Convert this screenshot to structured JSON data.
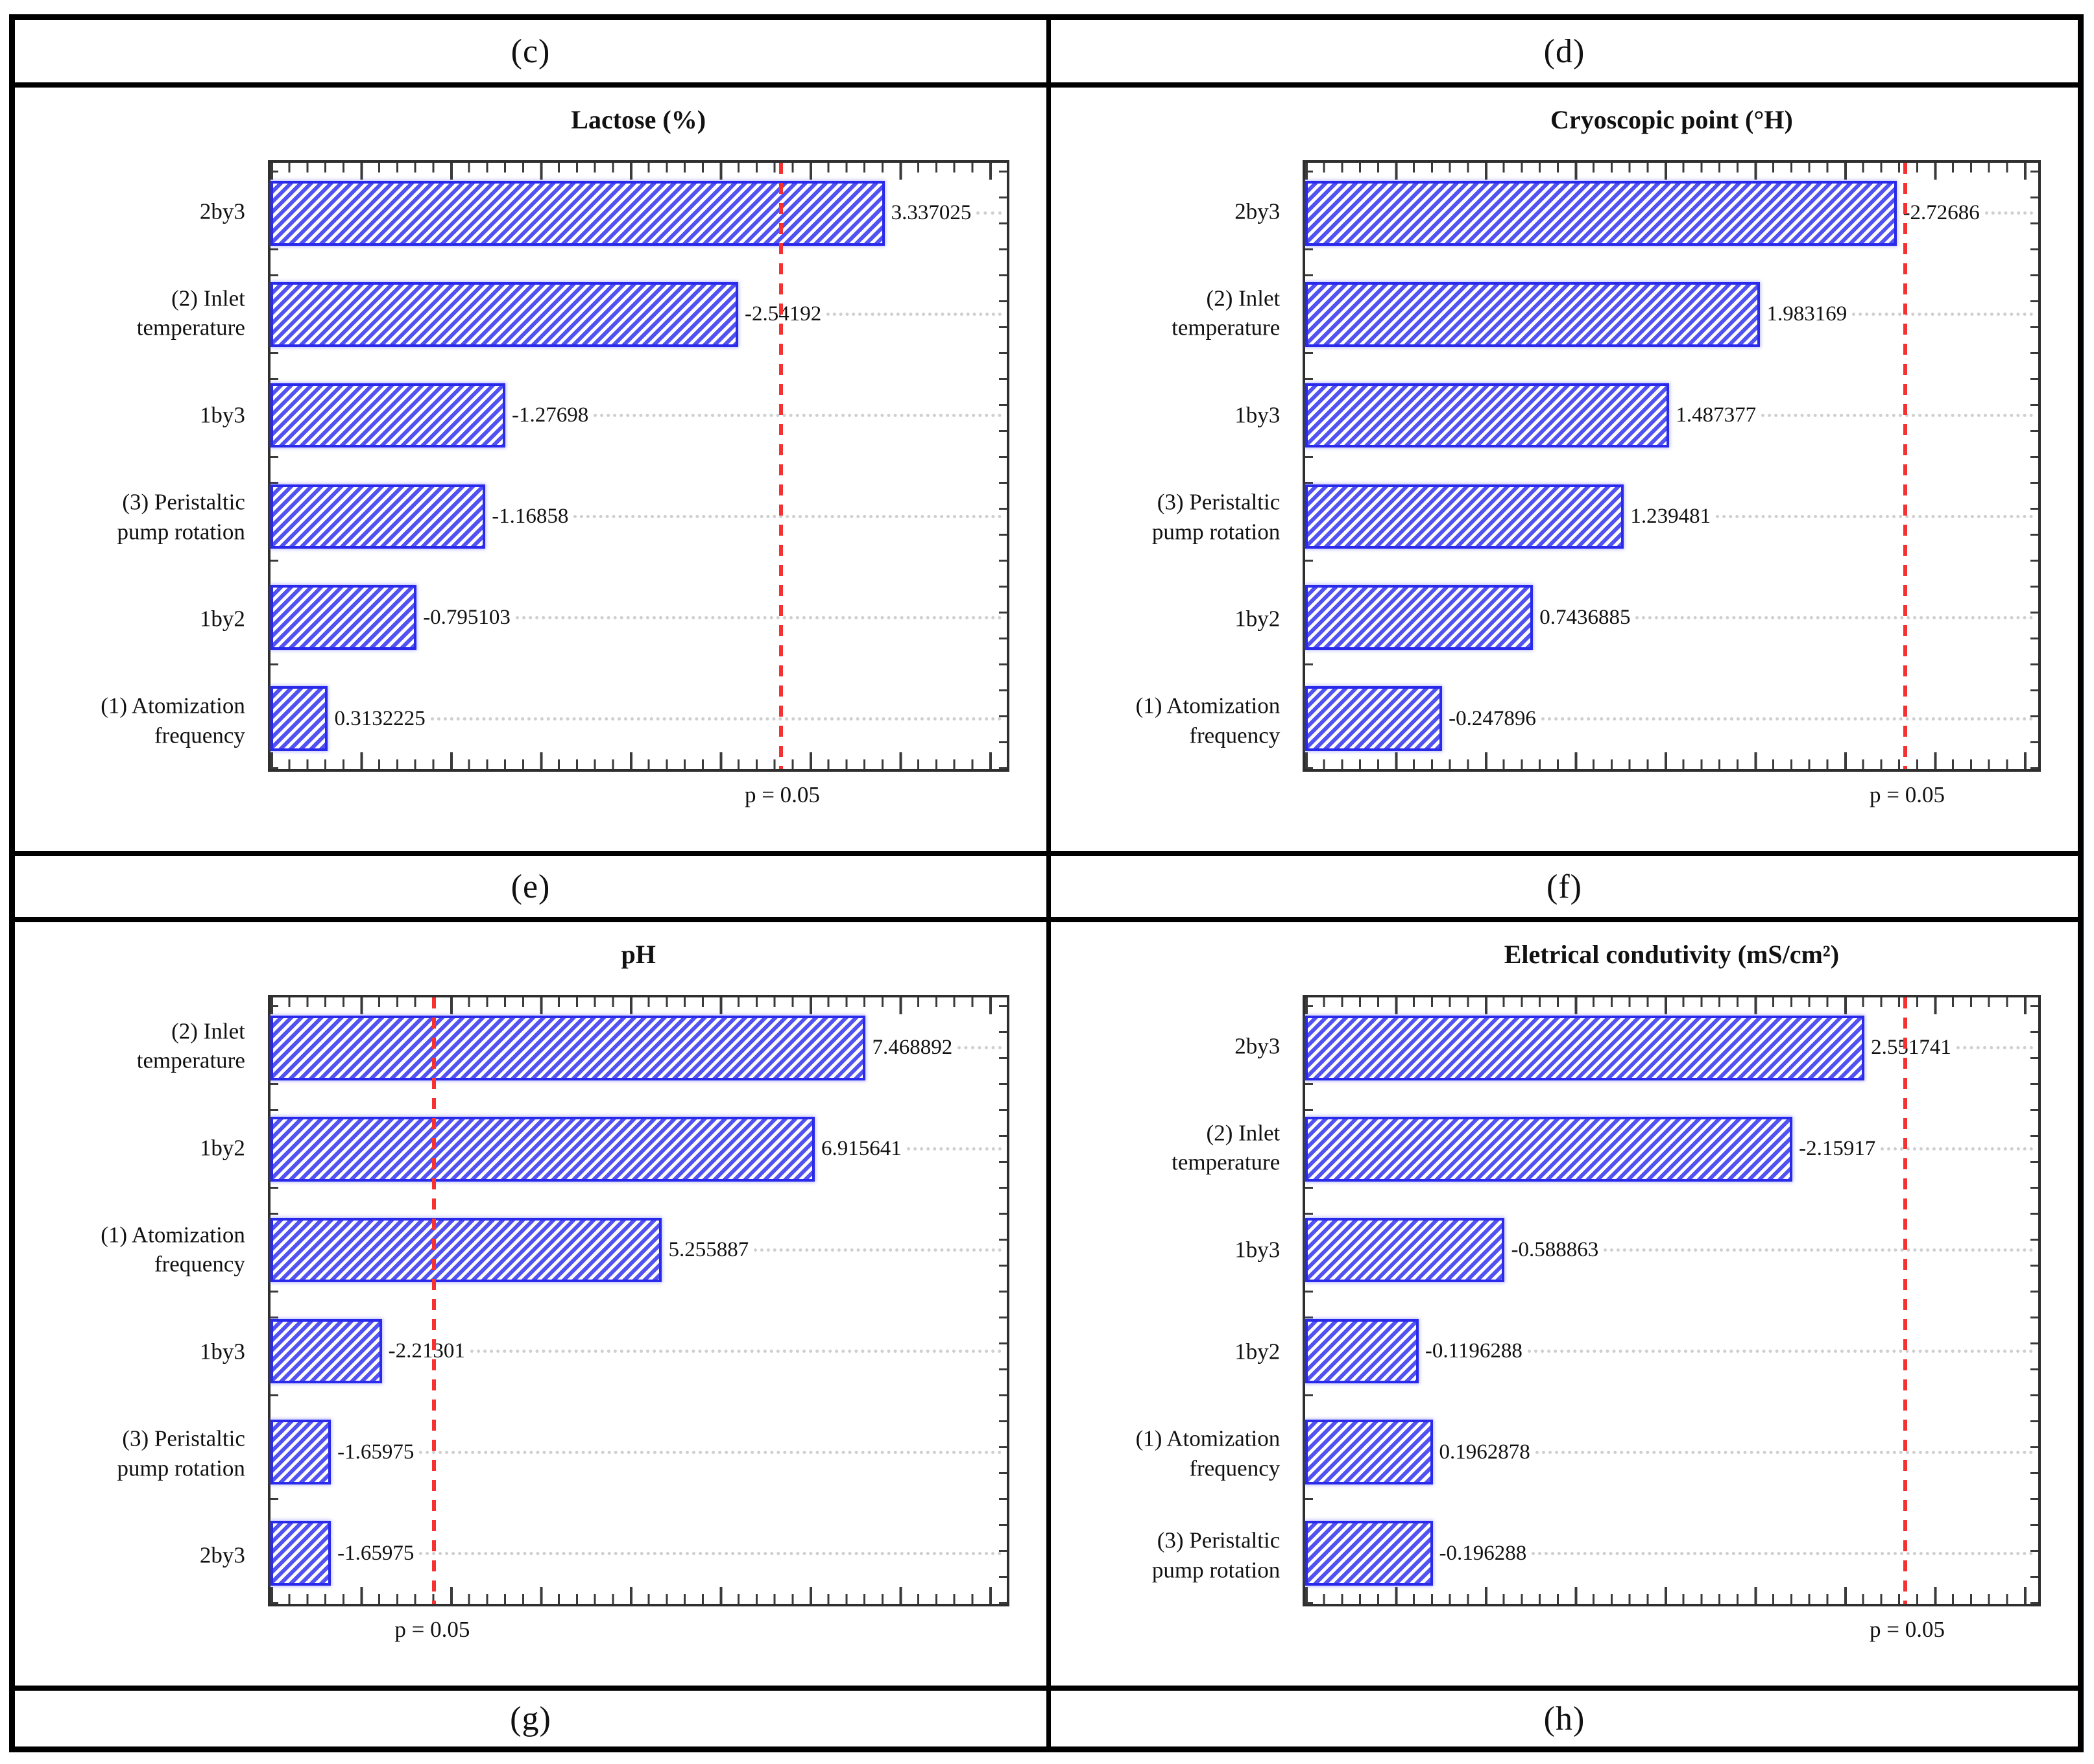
{
  "captions": {
    "c": "(c)",
    "d": "(d)",
    "e": "(e)",
    "f": "(f)",
    "g": "(g)",
    "h": "(h)"
  },
  "colors": {
    "bar_hatch_blue": "#5252f2",
    "bar_border_blue": "#2a2aea",
    "significance_line_red": "#f53131",
    "leader_dotted_gray": "#cfcfcf",
    "axis_frame": "#2e2e2e",
    "table_border": "#000000"
  },
  "chart_data": [
    {
      "type": "bar",
      "orientation": "horizontal",
      "title": "Lactose (%)",
      "categories": [
        "2by3",
        "(2) Inlet\ntemperature",
        "1by3",
        "(3) Peristaltic\npump rotation",
        "1by2",
        "(1) Atomization\nfrequency"
      ],
      "values": [
        3.337025,
        -2.54192,
        -1.27698,
        -1.16858,
        -0.795103,
        0.3132225
      ],
      "value_labels": [
        "3.337025",
        "-2.54192",
        "-1.27698",
        "-1.16858",
        "-0.795103",
        "0.3132225"
      ],
      "bar_length_basis": "absolute effect value",
      "xlim": [
        0,
        4.0
      ],
      "significance_line_x": 2.776,
      "p_label": "p = 0.05",
      "grid": "dotted horizontal leaders",
      "legend": "none"
    },
    {
      "type": "bar",
      "orientation": "horizontal",
      "title": "Cryoscopic point (°H)",
      "categories": [
        "2by3",
        "(2) Inlet\ntemperature",
        "1by3",
        "(3) Peristaltic\npump rotation",
        "1by2",
        "(1) Atomization\nfrequency"
      ],
      "values": [
        -2.72686,
        1.983169,
        1.487377,
        1.239481,
        0.7436885,
        -0.247896
      ],
      "value_labels": [
        "-2.72686",
        "1.983169",
        "1.487377",
        "1.239481",
        "0.7436885",
        "-0.247896"
      ],
      "bar_length_basis": "absolute effect value",
      "xlim": [
        -0.5,
        3.5
      ],
      "significance_line_x": 2.776,
      "p_label": "p = 0.05",
      "grid": "dotted horizontal leaders",
      "legend": "none"
    },
    {
      "type": "bar",
      "orientation": "horizontal",
      "title": "pH",
      "categories": [
        "(2) Inlet\ntemperature",
        "1by2",
        "(1) Atomization\nfrequency",
        "1by3",
        "(3) Peristaltic\npump rotation",
        "2by3"
      ],
      "values": [
        7.468892,
        6.915641,
        5.255887,
        -2.21301,
        -1.65975,
        -1.65975
      ],
      "value_labels": [
        "7.468892",
        "6.915641",
        "5.255887",
        "-2.21301",
        "-1.65975",
        "-1.65975"
      ],
      "bar_length_basis": "absolute effect value",
      "xlim": [
        1.0,
        9.0
      ],
      "significance_line_x": 2.776,
      "p_label": "p = 0.05",
      "grid": "dotted horizontal leaders",
      "legend": "none"
    },
    {
      "type": "bar",
      "orientation": "horizontal",
      "title": "Eletrical condutivity (mS/cm²)",
      "categories": [
        "2by3",
        "(2) Inlet\ntemperature",
        "1by3",
        "1by2",
        "(1) Atomization\nfrequency",
        "(3) Peristaltic\npump rotation"
      ],
      "values": [
        2.551741,
        -2.15917,
        -0.588863,
        -0.1196288,
        0.1962878,
        -0.196288
      ],
      "value_labels": [
        "2.551741",
        "-2.15917",
        "-0.588863",
        "-0.1196288",
        "0.1962878",
        "-0.196288"
      ],
      "bar_length_basis": "absolute effect value",
      "xlim": [
        -0.5,
        3.5
      ],
      "significance_line_x": 2.776,
      "p_label": "p = 0.05",
      "grid": "dotted horizontal leaders",
      "legend": "none"
    }
  ]
}
